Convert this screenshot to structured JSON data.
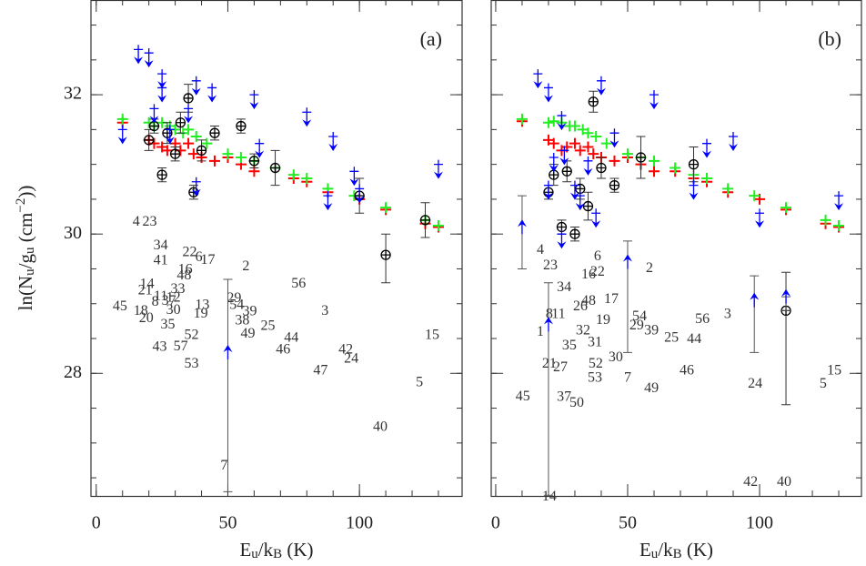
{
  "chart_data": [
    {
      "type": "scatter",
      "label": "(a)",
      "x_label": [
        "E",
        "u",
        "/k",
        "B",
        " (K)"
      ],
      "y_label": [
        "ln(N",
        "u",
        "/g",
        "u",
        " (cm",
        "−2",
        "))"
      ],
      "xlim": [
        -2,
        139
      ],
      "ylim": [
        26.24,
        33.36
      ],
      "xticks": [
        0,
        50,
        100
      ],
      "yticks": [
        28,
        30,
        32
      ],
      "minor_xstep": 10,
      "minor_ystep": 0.5,
      "ytick_labels": true,
      "series": [
        {
          "marker": "plus",
          "color": "#ff0000",
          "x": [
            10,
            20,
            22,
            25,
            27,
            30,
            32,
            35,
            37,
            40,
            45,
            50,
            55,
            60,
            68,
            75,
            80,
            88,
            100,
            110,
            125,
            130
          ],
          "values": [
            31.6,
            31.35,
            31.3,
            31.25,
            31.2,
            31.3,
            31.2,
            31.3,
            31.15,
            31.1,
            31.05,
            31.1,
            31.0,
            30.9,
            30.95,
            30.8,
            30.75,
            30.6,
            30.5,
            30.35,
            30.15,
            30.1
          ]
        },
        {
          "marker": "plus",
          "color": "#22ee22",
          "x": [
            10,
            20,
            22,
            25,
            28,
            30,
            33,
            35,
            38,
            42,
            50,
            55,
            60,
            68,
            75,
            80,
            88,
            98,
            110,
            125,
            130
          ],
          "values": [
            31.65,
            31.6,
            31.55,
            31.6,
            31.55,
            31.5,
            31.45,
            31.5,
            31.4,
            31.3,
            31.15,
            31.1,
            31.05,
            30.95,
            30.85,
            30.8,
            30.65,
            30.55,
            30.38,
            30.2,
            30.12
          ]
        },
        {
          "marker": "circle-plus",
          "color": "#000000",
          "x": [
            20,
            22,
            25,
            27,
            30,
            32,
            35,
            37,
            40,
            45,
            55,
            60,
            68,
            100,
            110,
            125
          ],
          "values": [
            31.35,
            31.55,
            30.85,
            31.45,
            31.15,
            31.6,
            31.95,
            30.6,
            31.2,
            31.45,
            31.55,
            31.05,
            30.95,
            30.55,
            29.7,
            30.2
          ],
          "errors": [
            [
              0.15,
              0.15
            ],
            [
              0.1,
              0.1
            ],
            [
              0.1,
              0.1
            ],
            [
              0.15,
              0.15
            ],
            [
              0.1,
              0.1
            ],
            [
              0.15,
              0.15
            ],
            [
              0.2,
              0.2
            ],
            [
              0.1,
              0.1
            ],
            [
              0.15,
              0.15
            ],
            [
              0.1,
              0.1
            ],
            [
              0.1,
              0.1
            ],
            [
              0.1,
              0.1
            ],
            [
              0.25,
              0.25
            ],
            [
              0.25,
              0.25
            ],
            [
              0.4,
              0.3
            ],
            [
              0.25,
              0.25
            ]
          ]
        },
        {
          "marker": "arrow-down",
          "color": "#0000ff",
          "x": [
            10,
            16,
            20,
            22,
            25,
            25,
            28,
            35,
            38,
            38,
            44,
            60,
            62,
            80,
            88,
            90,
            98,
            100,
            130
          ],
          "values": [
            31.5,
            32.65,
            32.6,
            31.8,
            32.3,
            32.1,
            31.5,
            31.8,
            32.2,
            30.75,
            32.1,
            32.0,
            31.3,
            31.75,
            30.55,
            31.4,
            30.9,
            30.65,
            31.0
          ]
        },
        {
          "marker": "arrow-up",
          "color": "#0000ff",
          "x": [
            50
          ],
          "values": [
            28.2
          ],
          "errors": [
            [
              1.9,
              1.15
            ]
          ]
        }
      ],
      "annotations": [
        {
          "text": "4",
          "x": 15.2,
          "y": 30.17
        },
        {
          "text": "23",
          "x": 20.3,
          "y": 30.17
        },
        {
          "text": "34",
          "x": 24.5,
          "y": 29.83
        },
        {
          "text": "22",
          "x": 35.5,
          "y": 29.73
        },
        {
          "text": "6",
          "x": 39.0,
          "y": 29.66
        },
        {
          "text": "17",
          "x": 42.4,
          "y": 29.62
        },
        {
          "text": "41",
          "x": 24.5,
          "y": 29.61
        },
        {
          "text": "16",
          "x": 33.8,
          "y": 29.48
        },
        {
          "text": "48",
          "x": 33.4,
          "y": 29.4
        },
        {
          "text": "2",
          "x": 56.9,
          "y": 29.53
        },
        {
          "text": "56",
          "x": 76.9,
          "y": 29.28
        },
        {
          "text": "14",
          "x": 19.3,
          "y": 29.27
        },
        {
          "text": "21",
          "x": 18.6,
          "y": 29.18
        },
        {
          "text": "33",
          "x": 31.0,
          "y": 29.2
        },
        {
          "text": "11",
          "x": 24.5,
          "y": 29.1
        },
        {
          "text": "12",
          "x": 29.3,
          "y": 29.08
        },
        {
          "text": "8",
          "x": 22.4,
          "y": 29.02
        },
        {
          "text": "37",
          "x": 27.6,
          "y": 29.03
        },
        {
          "text": "45",
          "x": 9.0,
          "y": 28.95
        },
        {
          "text": "18",
          "x": 16.9,
          "y": 28.89
        },
        {
          "text": "20",
          "x": 19.0,
          "y": 28.78
        },
        {
          "text": "30",
          "x": 29.3,
          "y": 28.9
        },
        {
          "text": "13",
          "x": 40.3,
          "y": 28.97
        },
        {
          "text": "19",
          "x": 39.7,
          "y": 28.85
        },
        {
          "text": "29",
          "x": 52.4,
          "y": 29.07
        },
        {
          "text": "54",
          "x": 53.4,
          "y": 28.97
        },
        {
          "text": "39",
          "x": 58.3,
          "y": 28.88
        },
        {
          "text": "38",
          "x": 55.5,
          "y": 28.75
        },
        {
          "text": "25",
          "x": 65.2,
          "y": 28.67
        },
        {
          "text": "49",
          "x": 57.6,
          "y": 28.56
        },
        {
          "text": "44",
          "x": 74.1,
          "y": 28.5
        },
        {
          "text": "46",
          "x": 71.0,
          "y": 28.33
        },
        {
          "text": "3",
          "x": 86.9,
          "y": 28.89
        },
        {
          "text": "42",
          "x": 94.8,
          "y": 28.33
        },
        {
          "text": "24",
          "x": 96.9,
          "y": 28.2
        },
        {
          "text": "47",
          "x": 85.2,
          "y": 28.03
        },
        {
          "text": "15",
          "x": 127.6,
          "y": 28.54
        },
        {
          "text": "5",
          "x": 122.8,
          "y": 27.86
        },
        {
          "text": "40",
          "x": 107.9,
          "y": 27.22
        },
        {
          "text": "7",
          "x": 48.6,
          "y": 26.67
        },
        {
          "text": "35",
          "x": 27.2,
          "y": 28.69
        },
        {
          "text": "52",
          "x": 36.2,
          "y": 28.54
        },
        {
          "text": "43",
          "x": 24.1,
          "y": 28.37
        },
        {
          "text": "57",
          "x": 32.1,
          "y": 28.38
        },
        {
          "text": "53",
          "x": 36.2,
          "y": 28.13
        }
      ]
    },
    {
      "type": "scatter",
      "label": "(b)",
      "x_label": [
        "E",
        "u",
        "/k",
        "B",
        " (K)"
      ],
      "xlim": [
        -1.7,
        138.6
      ],
      "ylim": [
        26.24,
        33.36
      ],
      "xticks": [
        0,
        50,
        100
      ],
      "yticks": [
        28,
        30,
        32
      ],
      "minor_xstep": 10,
      "minor_ystep": 0.5,
      "ytick_labels": false,
      "series": [
        {
          "marker": "plus",
          "color": "#ff0000",
          "x": [
            10,
            20,
            22,
            25,
            27,
            30,
            32,
            35,
            37,
            40,
            45,
            50,
            55,
            60,
            68,
            75,
            80,
            88,
            100,
            110,
            125,
            130
          ],
          "values": [
            31.62,
            31.35,
            31.3,
            31.2,
            31.25,
            31.3,
            31.2,
            31.25,
            31.15,
            31.1,
            31.05,
            31.1,
            31.0,
            30.9,
            30.9,
            30.8,
            30.75,
            30.6,
            30.5,
            30.35,
            30.15,
            30.1
          ]
        },
        {
          "marker": "plus",
          "color": "#22ee22",
          "x": [
            10,
            20,
            22,
            25,
            28,
            30,
            33,
            35,
            38,
            42,
            50,
            55,
            60,
            68,
            75,
            80,
            88,
            98,
            110,
            125,
            130
          ],
          "values": [
            31.65,
            31.6,
            31.62,
            31.6,
            31.55,
            31.55,
            31.5,
            31.45,
            31.4,
            31.3,
            31.15,
            31.1,
            31.05,
            30.95,
            30.85,
            30.8,
            30.65,
            30.55,
            30.38,
            30.2,
            30.12
          ]
        },
        {
          "marker": "circle-plus",
          "color": "#000000",
          "x": [
            20,
            22,
            25,
            27,
            30,
            32,
            35,
            37,
            40,
            45,
            55,
            75,
            110
          ],
          "values": [
            30.6,
            30.85,
            30.1,
            30.9,
            30.0,
            30.65,
            30.4,
            31.9,
            30.95,
            30.7,
            31.1,
            31.0,
            28.9
          ],
          "errors": [
            [
              0.1,
              0.1
            ],
            [
              0.15,
              0.15
            ],
            [
              0.1,
              0.1
            ],
            [
              0.15,
              0.15
            ],
            [
              0.1,
              0.1
            ],
            [
              0.15,
              0.15
            ],
            [
              0.2,
              0.2
            ],
            [
              0.15,
              0.15
            ],
            [
              0.15,
              0.15
            ],
            [
              0.1,
              0.1
            ],
            [
              0.3,
              0.3
            ],
            [
              0.25,
              0.25
            ],
            [
              1.35,
              0.55
            ]
          ]
        },
        {
          "marker": "arrow-down",
          "color": "#0000ff",
          "x": [
            16,
            20,
            20,
            22,
            25,
            25,
            26,
            30,
            32,
            35,
            38,
            40,
            45,
            60,
            75,
            80,
            90,
            100,
            130
          ],
          "values": [
            32.3,
            32.1,
            30.7,
            31.1,
            31.7,
            30.0,
            31.2,
            30.7,
            30.55,
            31.05,
            30.3,
            32.2,
            31.45,
            32.0,
            30.7,
            31.3,
            31.4,
            30.3,
            30.55
          ]
        },
        {
          "marker": "arrow-up",
          "color": "#0000ff",
          "x": [
            10,
            20,
            50,
            98,
            110
          ],
          "values": [
            30.0,
            28.6,
            29.5,
            28.95,
            29.0
          ],
          "errors": [
            [
              0.5,
              0.55
            ],
            [
              2.35,
              0.7
            ],
            [
              1.2,
              0.4
            ],
            [
              0.65,
              0.45
            ],
            [
              0.1,
              0.1
            ]
          ]
        }
      ],
      "annotations": [
        {
          "text": "4",
          "x": 16.9,
          "y": 29.76
        },
        {
          "text": "23",
          "x": 20.7,
          "y": 29.54
        },
        {
          "text": "6",
          "x": 38.6,
          "y": 29.67
        },
        {
          "text": "16",
          "x": 35.2,
          "y": 29.41
        },
        {
          "text": "22",
          "x": 38.6,
          "y": 29.45
        },
        {
          "text": "2",
          "x": 58.3,
          "y": 29.5
        },
        {
          "text": "34",
          "x": 25.9,
          "y": 29.23
        },
        {
          "text": "26",
          "x": 32.1,
          "y": 28.95
        },
        {
          "text": "48",
          "x": 35.2,
          "y": 29.03
        },
        {
          "text": "17",
          "x": 43.8,
          "y": 29.06
        },
        {
          "text": "8",
          "x": 20.3,
          "y": 28.84
        },
        {
          "text": "11",
          "x": 23.8,
          "y": 28.84
        },
        {
          "text": "1",
          "x": 16.9,
          "y": 28.59
        },
        {
          "text": "32",
          "x": 33.1,
          "y": 28.61
        },
        {
          "text": "19",
          "x": 40.7,
          "y": 28.76
        },
        {
          "text": "54",
          "x": 54.5,
          "y": 28.81
        },
        {
          "text": "29",
          "x": 53.4,
          "y": 28.68
        },
        {
          "text": "39",
          "x": 59.0,
          "y": 28.61
        },
        {
          "text": "56",
          "x": 78.3,
          "y": 28.77
        },
        {
          "text": "25",
          "x": 66.6,
          "y": 28.5
        },
        {
          "text": "44",
          "x": 75.2,
          "y": 28.48
        },
        {
          "text": "3",
          "x": 87.9,
          "y": 28.84
        },
        {
          "text": "31",
          "x": 37.6,
          "y": 28.44
        },
        {
          "text": "30",
          "x": 45.5,
          "y": 28.22
        },
        {
          "text": "35",
          "x": 27.9,
          "y": 28.39
        },
        {
          "text": "21",
          "x": 20.3,
          "y": 28.13
        },
        {
          "text": "27",
          "x": 24.5,
          "y": 28.08
        },
        {
          "text": "52",
          "x": 37.9,
          "y": 28.13
        },
        {
          "text": "53",
          "x": 37.6,
          "y": 27.93
        },
        {
          "text": "7",
          "x": 50.0,
          "y": 27.93
        },
        {
          "text": "46",
          "x": 72.4,
          "y": 28.03
        },
        {
          "text": "49",
          "x": 59.0,
          "y": 27.78
        },
        {
          "text": "45",
          "x": 10.3,
          "y": 27.66
        },
        {
          "text": "37",
          "x": 25.9,
          "y": 27.65
        },
        {
          "text": "50",
          "x": 30.7,
          "y": 27.57
        },
        {
          "text": "24",
          "x": 98.3,
          "y": 27.84
        },
        {
          "text": "5",
          "x": 124.1,
          "y": 27.84
        },
        {
          "text": "15",
          "x": 128.3,
          "y": 28.03
        },
        {
          "text": "42",
          "x": 96.6,
          "y": 26.43
        },
        {
          "text": "40",
          "x": 109.3,
          "y": 26.43
        },
        {
          "text": "14",
          "x": 20.3,
          "y": 26.22
        }
      ]
    }
  ]
}
